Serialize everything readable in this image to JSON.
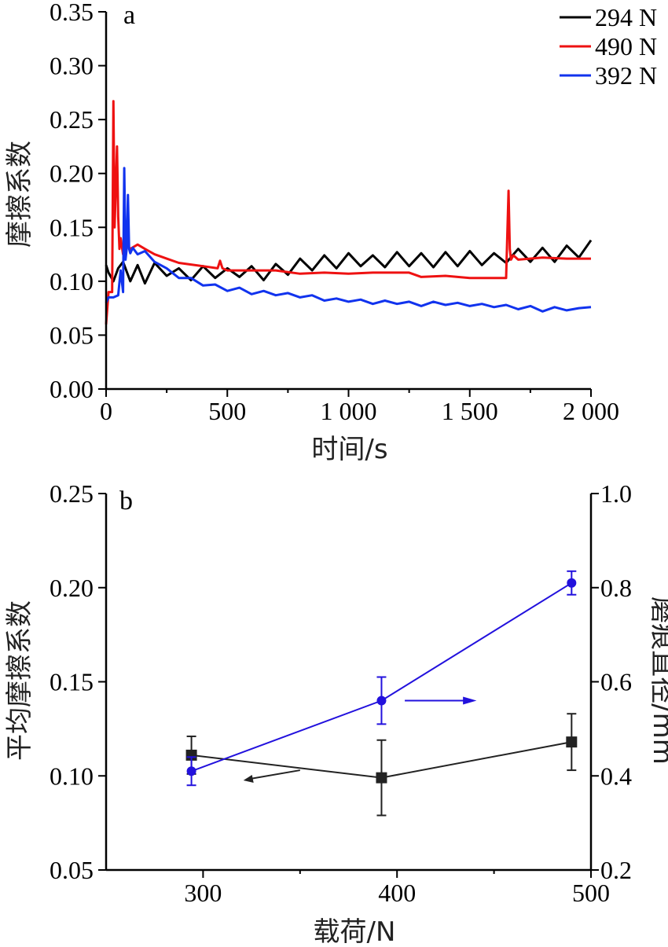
{
  "chart_data": [
    {
      "panel": "a",
      "type": "line",
      "xlabel": "时间/s",
      "ylabel": "摩擦系数",
      "xlim": [
        0,
        2000
      ],
      "ylim": [
        0,
        0.35
      ],
      "xticks": [
        {
          "v": 0,
          "label": "0"
        },
        {
          "v": 500,
          "label": "500"
        },
        {
          "v": 1000,
          "label": "1 000"
        },
        {
          "v": 1500,
          "label": "1 500"
        },
        {
          "v": 2000,
          "label": "2 000"
        }
      ],
      "yticks": [
        {
          "v": 0,
          "label": "0.00"
        },
        {
          "v": 0.05,
          "label": "0.05"
        },
        {
          "v": 0.1,
          "label": "0.10"
        },
        {
          "v": 0.15,
          "label": "0.15"
        },
        {
          "v": 0.2,
          "label": "0.20"
        },
        {
          "v": 0.25,
          "label": "0.25"
        },
        {
          "v": 0.3,
          "label": "0.30"
        },
        {
          "v": 0.35,
          "label": "0.35"
        }
      ],
      "legend_position": "top-right",
      "grid": false,
      "series": [
        {
          "name": "294 N",
          "color": "#000000",
          "x": [
            0,
            10,
            30,
            50,
            70,
            100,
            130,
            160,
            200,
            250,
            300,
            350,
            400,
            450,
            500,
            550,
            600,
            650,
            700,
            750,
            800,
            850,
            900,
            950,
            1000,
            1050,
            1100,
            1150,
            1200,
            1250,
            1300,
            1350,
            1400,
            1450,
            1500,
            1550,
            1600,
            1650,
            1700,
            1750,
            1800,
            1850,
            1900,
            1950,
            2000
          ],
          "y": [
            0.115,
            0.108,
            0.1,
            0.112,
            0.118,
            0.1,
            0.115,
            0.098,
            0.117,
            0.105,
            0.112,
            0.101,
            0.114,
            0.103,
            0.112,
            0.104,
            0.114,
            0.101,
            0.116,
            0.106,
            0.121,
            0.11,
            0.124,
            0.112,
            0.126,
            0.114,
            0.124,
            0.113,
            0.127,
            0.114,
            0.126,
            0.113,
            0.127,
            0.114,
            0.128,
            0.115,
            0.126,
            0.117,
            0.13,
            0.118,
            0.131,
            0.118,
            0.133,
            0.122,
            0.138
          ]
        },
        {
          "name": "490 N",
          "color": "#ee1111",
          "x": [
            0,
            10,
            25,
            30,
            35,
            45,
            50,
            55,
            60,
            70,
            80,
            100,
            130,
            160,
            200,
            250,
            300,
            400,
            460,
            470,
            480,
            500,
            600,
            700,
            800,
            900,
            1000,
            1100,
            1200,
            1250,
            1300,
            1400,
            1500,
            1600,
            1650,
            1660,
            1665,
            1670,
            1680,
            1700,
            1800,
            1900,
            2000
          ],
          "y": [
            0.06,
            0.09,
            0.09,
            0.267,
            0.15,
            0.225,
            0.16,
            0.13,
            0.14,
            0.125,
            0.135,
            0.13,
            0.134,
            0.13,
            0.125,
            0.121,
            0.117,
            0.114,
            0.112,
            0.119,
            0.112,
            0.11,
            0.11,
            0.11,
            0.107,
            0.108,
            0.107,
            0.108,
            0.108,
            0.108,
            0.104,
            0.105,
            0.103,
            0.103,
            0.103,
            0.184,
            0.13,
            0.12,
            0.124,
            0.12,
            0.122,
            0.121,
            0.121
          ]
        },
        {
          "name": "392 N",
          "color": "#1133ee",
          "x": [
            0,
            10,
            30,
            50,
            60,
            70,
            75,
            80,
            85,
            90,
            95,
            100,
            110,
            130,
            160,
            200,
            250,
            300,
            350,
            400,
            450,
            500,
            550,
            600,
            650,
            700,
            750,
            800,
            850,
            900,
            950,
            1000,
            1050,
            1100,
            1150,
            1200,
            1250,
            1300,
            1350,
            1400,
            1450,
            1500,
            1550,
            1600,
            1650,
            1700,
            1750,
            1800,
            1850,
            1900,
            1950,
            2000
          ],
          "y": [
            0.08,
            0.085,
            0.085,
            0.087,
            0.11,
            0.09,
            0.205,
            0.12,
            0.13,
            0.18,
            0.13,
            0.126,
            0.131,
            0.125,
            0.128,
            0.118,
            0.112,
            0.103,
            0.103,
            0.096,
            0.097,
            0.091,
            0.094,
            0.088,
            0.091,
            0.087,
            0.089,
            0.085,
            0.087,
            0.082,
            0.084,
            0.081,
            0.083,
            0.079,
            0.082,
            0.079,
            0.081,
            0.077,
            0.081,
            0.078,
            0.08,
            0.077,
            0.079,
            0.076,
            0.078,
            0.074,
            0.077,
            0.072,
            0.076,
            0.073,
            0.075,
            0.076
          ]
        }
      ]
    },
    {
      "panel": "b",
      "type": "line",
      "xlabel": "载荷/N",
      "ylabel_left": "平均摩擦系数",
      "ylabel_right": "磨痕直径/mm",
      "xlim": [
        250,
        500
      ],
      "ylim_left": [
        0.05,
        0.25
      ],
      "ylim_right": [
        0.2,
        1.0
      ],
      "xticks": [
        {
          "v": 300,
          "label": "300"
        },
        {
          "v": 400,
          "label": "400"
        },
        {
          "v": 500,
          "label": "500"
        }
      ],
      "yticks_left": [
        {
          "v": 0.05,
          "label": "0.05"
        },
        {
          "v": 0.1,
          "label": "0.10"
        },
        {
          "v": 0.15,
          "label": "0.15"
        },
        {
          "v": 0.2,
          "label": "0.20"
        },
        {
          "v": 0.25,
          "label": "0.25"
        }
      ],
      "yticks_right": [
        {
          "v": 0.2,
          "label": "0.2"
        },
        {
          "v": 0.4,
          "label": "0.4"
        },
        {
          "v": 0.6,
          "label": "0.6"
        },
        {
          "v": 0.8,
          "label": "0.8"
        },
        {
          "v": 1.0,
          "label": "1.0"
        }
      ],
      "grid": false,
      "series": [
        {
          "axis": "left",
          "color": "#222222",
          "marker": "square",
          "x": [
            294,
            392,
            490
          ],
          "y": [
            0.111,
            0.099,
            0.118
          ],
          "err": [
            0.01,
            0.02,
            0.015
          ]
        },
        {
          "axis": "right",
          "color": "#2211dd",
          "marker": "circle",
          "x": [
            294,
            392,
            490
          ],
          "y": [
            0.41,
            0.56,
            0.81
          ],
          "err": [
            0.03,
            0.05,
            0.025
          ]
        }
      ]
    }
  ]
}
